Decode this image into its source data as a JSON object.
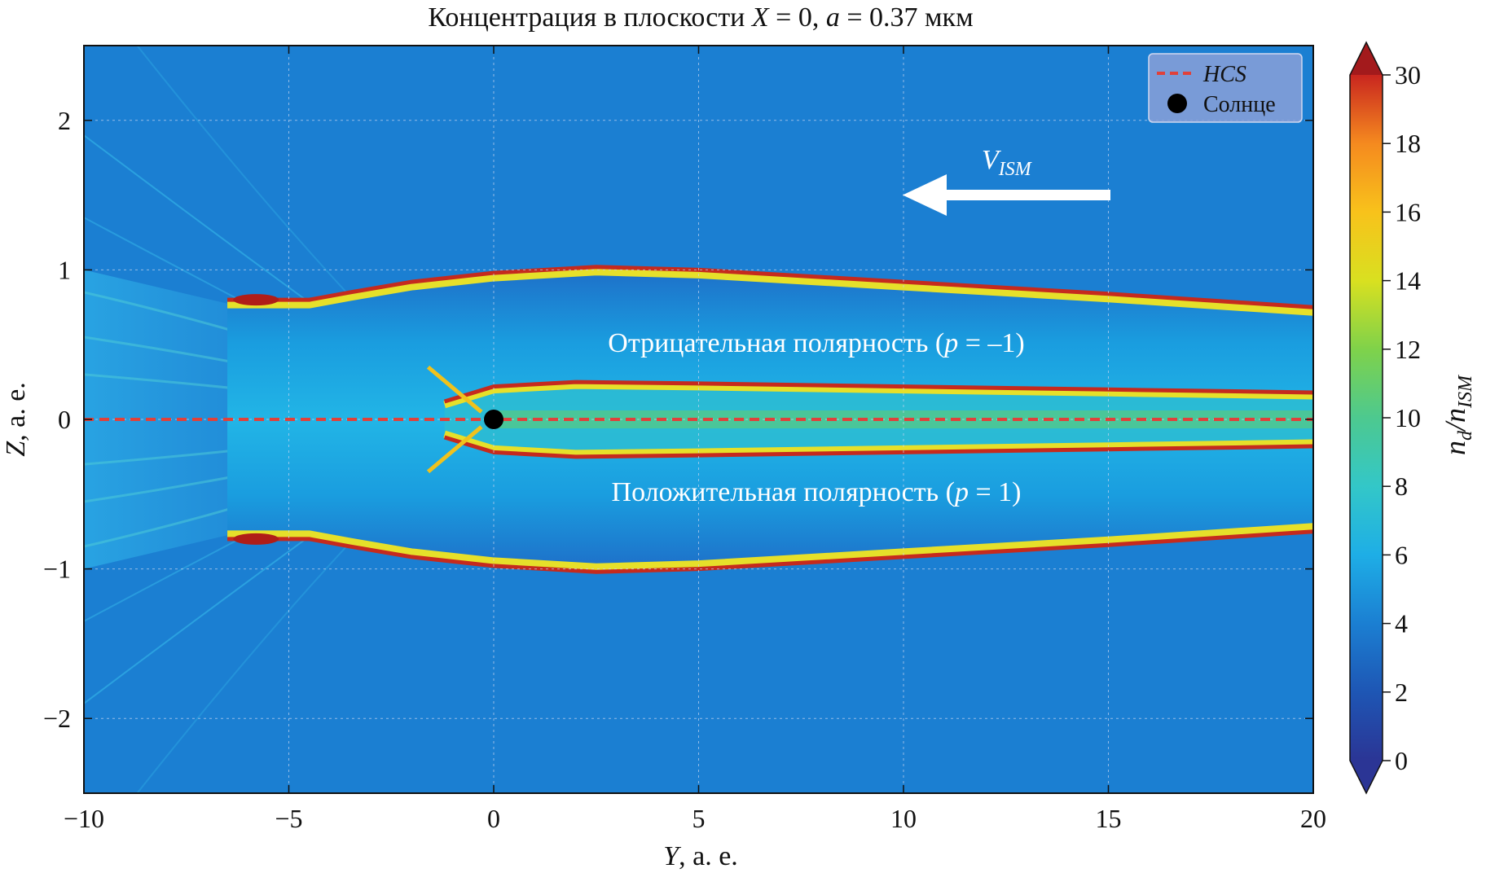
{
  "chart_data": {
    "type": "heatmap",
    "title_parts": [
      "Концентрация в плоскости ",
      "X",
      " = 0, ",
      "a",
      " = 0.37 мкм"
    ],
    "xlabel_parts": [
      "Y",
      ", а. е."
    ],
    "ylabel_parts": [
      "Z",
      ", а. е."
    ],
    "colorbar_label": {
      "base1": "n",
      "sub1": "d",
      "slash": "/",
      "base2": "n",
      "sub2": "ISM"
    },
    "xlim": [
      -10,
      20
    ],
    "ylim": [
      -2.5,
      2.5
    ],
    "x_ticks": [
      -10,
      -5,
      0,
      5,
      10,
      15,
      20
    ],
    "x_tick_labels": [
      "−10",
      "−5",
      "0",
      "5",
      "10",
      "15",
      "20"
    ],
    "y_ticks": [
      -2,
      -1,
      0,
      1,
      2
    ],
    "y_tick_labels": [
      "−2",
      "−1",
      "0",
      "1",
      "2"
    ],
    "grid": true,
    "colorbar": {
      "levels": [
        0,
        2,
        4,
        6,
        8,
        10,
        12,
        14,
        16,
        18,
        30
      ],
      "labels": [
        "0",
        "2",
        "4",
        "6",
        "8",
        "10",
        "12",
        "14",
        "16",
        "18",
        "30"
      ],
      "colors": [
        "#2b3595",
        "#1e56b4",
        "#1b7fd2",
        "#1eaee6",
        "#33c7c8",
        "#4dc98f",
        "#7fd24a",
        "#d9e020",
        "#f8c21b",
        "#f58a1f",
        "#e54b24",
        "#a31a1c"
      ]
    },
    "background_value": 3,
    "series": [
      {
        "name": "HCS",
        "type": "line",
        "style": "dashed",
        "color": "#e0413a",
        "x": [
          -10,
          20
        ],
        "y": [
          0,
          0
        ]
      },
      {
        "name": "Солнце",
        "type": "marker",
        "color": "#000000",
        "x": [
          0
        ],
        "y": [
          0
        ]
      }
    ],
    "features": {
      "outer_upper_boundary": {
        "x": [
          -6.5,
          -4.5,
          -3.5,
          -2,
          0,
          2.5,
          5,
          10,
          15,
          20
        ],
        "y": [
          0.8,
          0.8,
          0.85,
          0.92,
          0.98,
          1.02,
          1.0,
          0.92,
          0.84,
          0.75
        ]
      },
      "outer_lower_boundary": {
        "x": [
          -6.5,
          -4.5,
          -3.5,
          -2,
          0,
          2.5,
          5,
          10,
          15,
          20
        ],
        "y": [
          -0.8,
          -0.8,
          -0.85,
          -0.92,
          -0.98,
          -1.02,
          -1.0,
          -0.92,
          -0.84,
          -0.75
        ]
      },
      "inner_upper_boundary": {
        "x": [
          -1.2,
          0,
          2,
          5,
          10,
          15,
          20
        ],
        "y": [
          0.12,
          0.22,
          0.25,
          0.24,
          0.22,
          0.2,
          0.18
        ]
      },
      "inner_lower_boundary": {
        "x": [
          -1.2,
          0,
          2,
          5,
          10,
          15,
          20
        ],
        "y": [
          -0.12,
          -0.22,
          -0.25,
          -0.24,
          -0.22,
          -0.2,
          -0.18
        ]
      }
    },
    "legend": {
      "position": "top-right",
      "entries": [
        "HCS",
        "Солнце"
      ]
    },
    "annotations": {
      "velocity": {
        "base": "V",
        "sub": "ISM",
        "direction": "left"
      },
      "negative_region": {
        "text_before": "Отрицательная полярность (",
        "var": "p",
        "text_after": " = –1)"
      },
      "positive_region": {
        "text_before": "Положительная полярность (",
        "var": "p",
        "text_after": " = 1)"
      }
    }
  }
}
